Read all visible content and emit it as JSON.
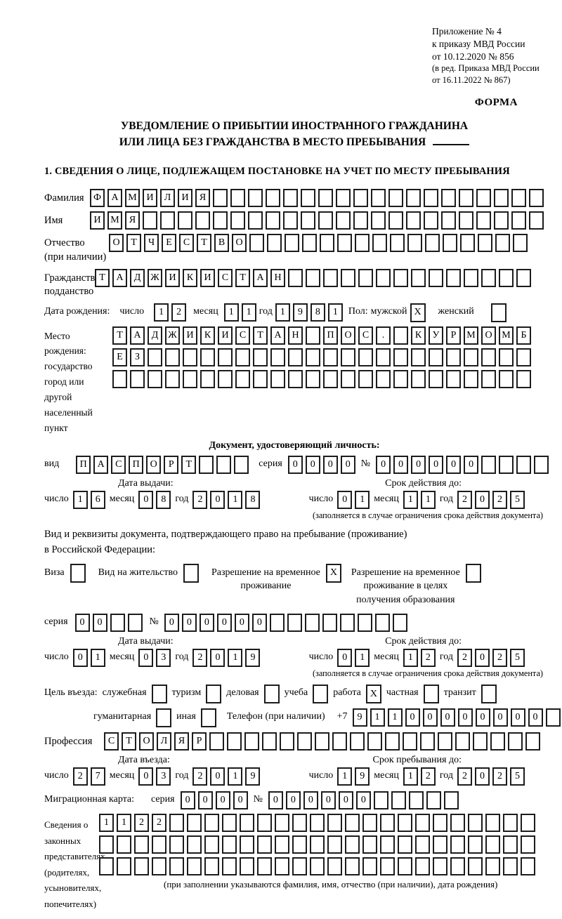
{
  "header": {
    "appendix_lines": [
      "Приложение № 4",
      "к приказу МВД России",
      "от 10.12.2020 № 856"
    ],
    "edition_lines": [
      "(в ред. Приказа МВД России",
      "от 16.11.2022 № 867)"
    ],
    "forma": "ФОРМА"
  },
  "title": {
    "line1": "УВЕДОМЛЕНИЕ О ПРИБЫТИИ ИНОСТРАННОГО ГРАЖДАНИНА",
    "line2": "ИЛИ ЛИЦА БЕЗ ГРАЖДАНСТВА В МЕСТО ПРЕБЫВАНИЯ"
  },
  "section1_heading": "1. СВЕДЕНИЯ О ЛИЦЕ, ПОДЛЕЖАЩЕМ ПОСТАНОВКЕ НА УЧЕТ ПО МЕСТУ ПРЕБЫВАНИЯ",
  "date_labels": {
    "day": "число",
    "month": "месяц",
    "year": "год"
  },
  "surname": {
    "label": "Фамилия",
    "text": "ФАМИЛИЯ",
    "len": 26
  },
  "name": {
    "label": "Имя",
    "text": "ИМЯ",
    "len": 26
  },
  "patronymic": {
    "label1": "Отчество",
    "label2": "(при наличии)",
    "text": "ОТЧЕСТВО",
    "len": 24
  },
  "citizenship": {
    "label1": "Гражданство,",
    "label2": "подданство",
    "text": "ТАДЖИКИСТАН",
    "len": 25
  },
  "birth_date": {
    "label": "Дата рождения:",
    "day": "12",
    "month": "11",
    "year": "1981",
    "sex_label": "Пол:",
    "male_label": "мужской",
    "male_checked": "X",
    "female_label": "женский",
    "female_checked": ""
  },
  "birth_place": {
    "labels": [
      "Место рождения:",
      "государство",
      "город или другой",
      "населенный пункт"
    ],
    "rows": [
      {
        "text": "ТАДЖИКИСТАН ПОС. КУРМОМБ",
        "len": 24
      },
      {
        "text": "ЕЗ",
        "len": 24
      },
      {
        "text": "",
        "len": 24
      }
    ]
  },
  "identity_doc": {
    "heading": "Документ, удостоверяющий личность:",
    "kind_label": "вид",
    "kind": {
      "text": "ПАСПОРТ",
      "len": 10
    },
    "series_label": "серия",
    "series": {
      "text": "0000",
      "len": 4
    },
    "number_label": "№",
    "number": {
      "text": "000000",
      "len": 10
    },
    "issue_header": "Дата выдачи:",
    "issue": {
      "day": "16",
      "month": "08",
      "year": "2018"
    },
    "valid_header": "Срок действия до:",
    "valid": {
      "day": "01",
      "month": "11",
      "year": "2025"
    },
    "note": "(заполняется в случае ограничения срока действия документа)"
  },
  "residence_doc": {
    "intro1": "Вид и реквизиты документа, подтверждающего право на пребывание (проживание)",
    "intro2": "в Российской Федерации:",
    "options": [
      {
        "lines": [
          "Виза"
        ],
        "checked": ""
      },
      {
        "lines": [
          "Вид на жительство"
        ],
        "checked": ""
      },
      {
        "lines": [
          "Разрешение на временное",
          "проживание"
        ],
        "checked": "X"
      },
      {
        "lines": [
          "Разрешение на временное",
          "проживание в целях",
          "получения образования"
        ],
        "checked": ""
      }
    ],
    "series_label": "серия",
    "series": {
      "text": "00",
      "len": 4
    },
    "number_label": "№",
    "number": {
      "text": "000000",
      "len": 14
    },
    "issue_header": "Дата выдачи:",
    "issue": {
      "day": "01",
      "month": "03",
      "year": "2019"
    },
    "valid_header": "Срок действия до:",
    "valid": {
      "day": "01",
      "month": "12",
      "year": "2025"
    },
    "note": "(заполняется в случае ограничения срока действия документа)"
  },
  "entry_purpose": {
    "label": "Цель въезда:",
    "row1": [
      {
        "label": "служебная",
        "checked": ""
      },
      {
        "label": "туризм",
        "checked": ""
      },
      {
        "label": "деловая",
        "checked": ""
      },
      {
        "label": "учеба",
        "checked": ""
      },
      {
        "label": "работа",
        "checked": "X"
      },
      {
        "label": "частная",
        "checked": ""
      },
      {
        "label": "транзит",
        "checked": ""
      }
    ],
    "row2": [
      {
        "label": "гуманитарная",
        "checked": ""
      },
      {
        "label": "иная",
        "checked": ""
      }
    ],
    "phone_label": "Телефон (при наличии)",
    "phone_prefix": "+7",
    "phone": {
      "text": "91100000000",
      "len": 12
    }
  },
  "profession": {
    "label": "Профессия",
    "text": "СТОЛЯР",
    "len": 25
  },
  "entry_date": {
    "entry_header": "Дата въезда:",
    "entry": {
      "day": "27",
      "month": "03",
      "year": "2019"
    },
    "stay_header": "Срок пребывания до:",
    "stay": {
      "day": "19",
      "month": "12",
      "year": "2025"
    }
  },
  "migration_card": {
    "label": "Миграционная карта:",
    "series_label": "серия",
    "series": {
      "text": "0000",
      "len": 4
    },
    "number_label": "№",
    "number": {
      "text": "000000",
      "len": 11
    }
  },
  "representatives": {
    "labels": [
      "Сведения о",
      "законных",
      "представителях",
      "(родителях,",
      "усыновителях,",
      "попечителях)"
    ],
    "rows": [
      {
        "text": "1122",
        "len": 25
      },
      {
        "text": "",
        "len": 25
      },
      {
        "text": "",
        "len": 25
      }
    ],
    "note": "(при заполнении указываются фамилия, имя, отчество (при наличии), дата рождения)"
  }
}
